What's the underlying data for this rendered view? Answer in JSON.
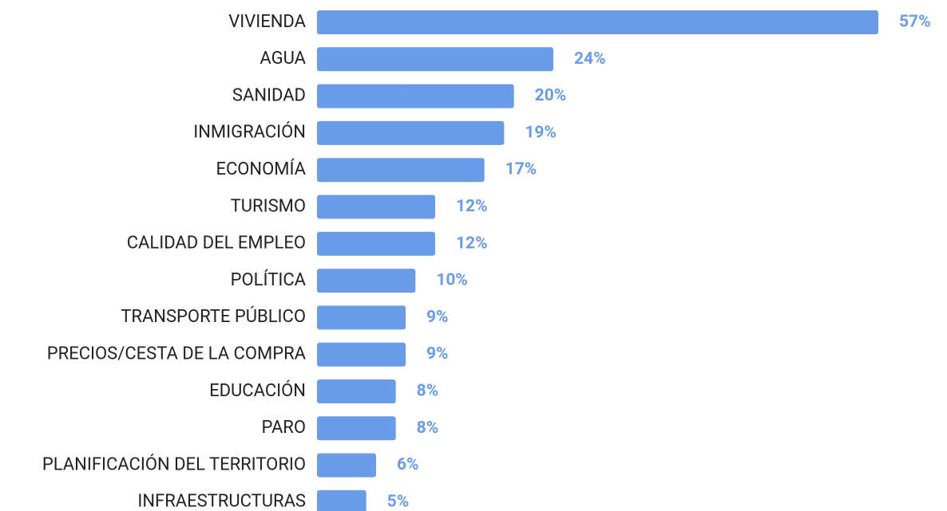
{
  "chart_data": {
    "type": "bar",
    "orientation": "horizontal",
    "categories": [
      "VIVIENDA",
      "AGUA",
      "SANIDAD",
      "INMIGRACIÓN",
      "ECONOMÍA",
      "TURISMO",
      "CALIDAD DEL EMPLEO",
      "POLÍTICA",
      "TRANSPORTE PÚBLICO",
      "PRECIOS/CESTA DE LA COMPRA",
      "EDUCACIÓN",
      "PARO",
      "PLANIFICACIÓN DEL TERRITORIO",
      "INFRAESTRUCTURAS"
    ],
    "values": [
      57,
      24,
      20,
      19,
      17,
      12,
      12,
      10,
      9,
      9,
      8,
      8,
      6,
      5
    ],
    "value_labels": [
      "57%",
      "24%",
      "20%",
      "19%",
      "17%",
      "12%",
      "12%",
      "10%",
      "9%",
      "9%",
      "8%",
      "8%",
      "6%",
      "5%"
    ],
    "color": "#6a9be8"
  }
}
